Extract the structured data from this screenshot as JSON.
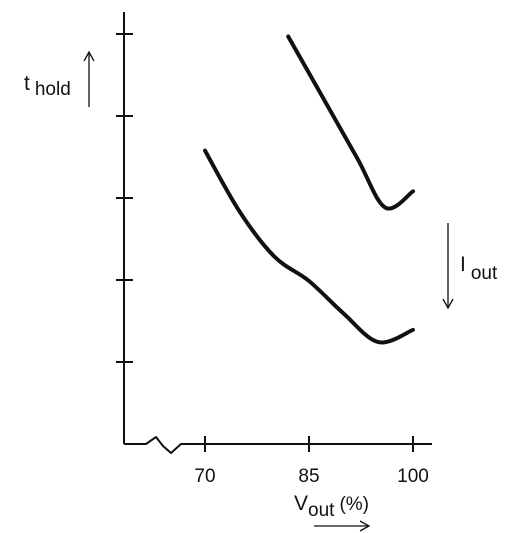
{
  "chart_data": {
    "type": "line",
    "x_axis": {
      "label_main": "V",
      "label_sub": "out",
      "label_unit": "(%)",
      "ticks": [
        70,
        85,
        100
      ],
      "tick_labels": [
        "70",
        "85",
        "100"
      ],
      "range": [
        58,
        103
      ],
      "axis_break": true
    },
    "y_axis": {
      "label_main": "t",
      "label_sub": "hold",
      "tick_count": 5,
      "tick_labels": [],
      "range": [
        0,
        5.3
      ]
    },
    "annotation": {
      "label_main": "I",
      "label_sub": "out",
      "arrow_direction": "down"
    },
    "series": [
      {
        "x": [
          82,
          87,
          92,
          96,
          100
        ],
        "y": [
          5.0,
          4.25,
          3.5,
          2.9,
          3.1
        ]
      },
      {
        "x": [
          70,
          75,
          80,
          85,
          90,
          95,
          100
        ],
        "y": [
          3.6,
          2.85,
          2.3,
          2.0,
          1.6,
          1.25,
          1.4
        ]
      }
    ],
    "grid": false,
    "stroke_color": "#111111"
  }
}
